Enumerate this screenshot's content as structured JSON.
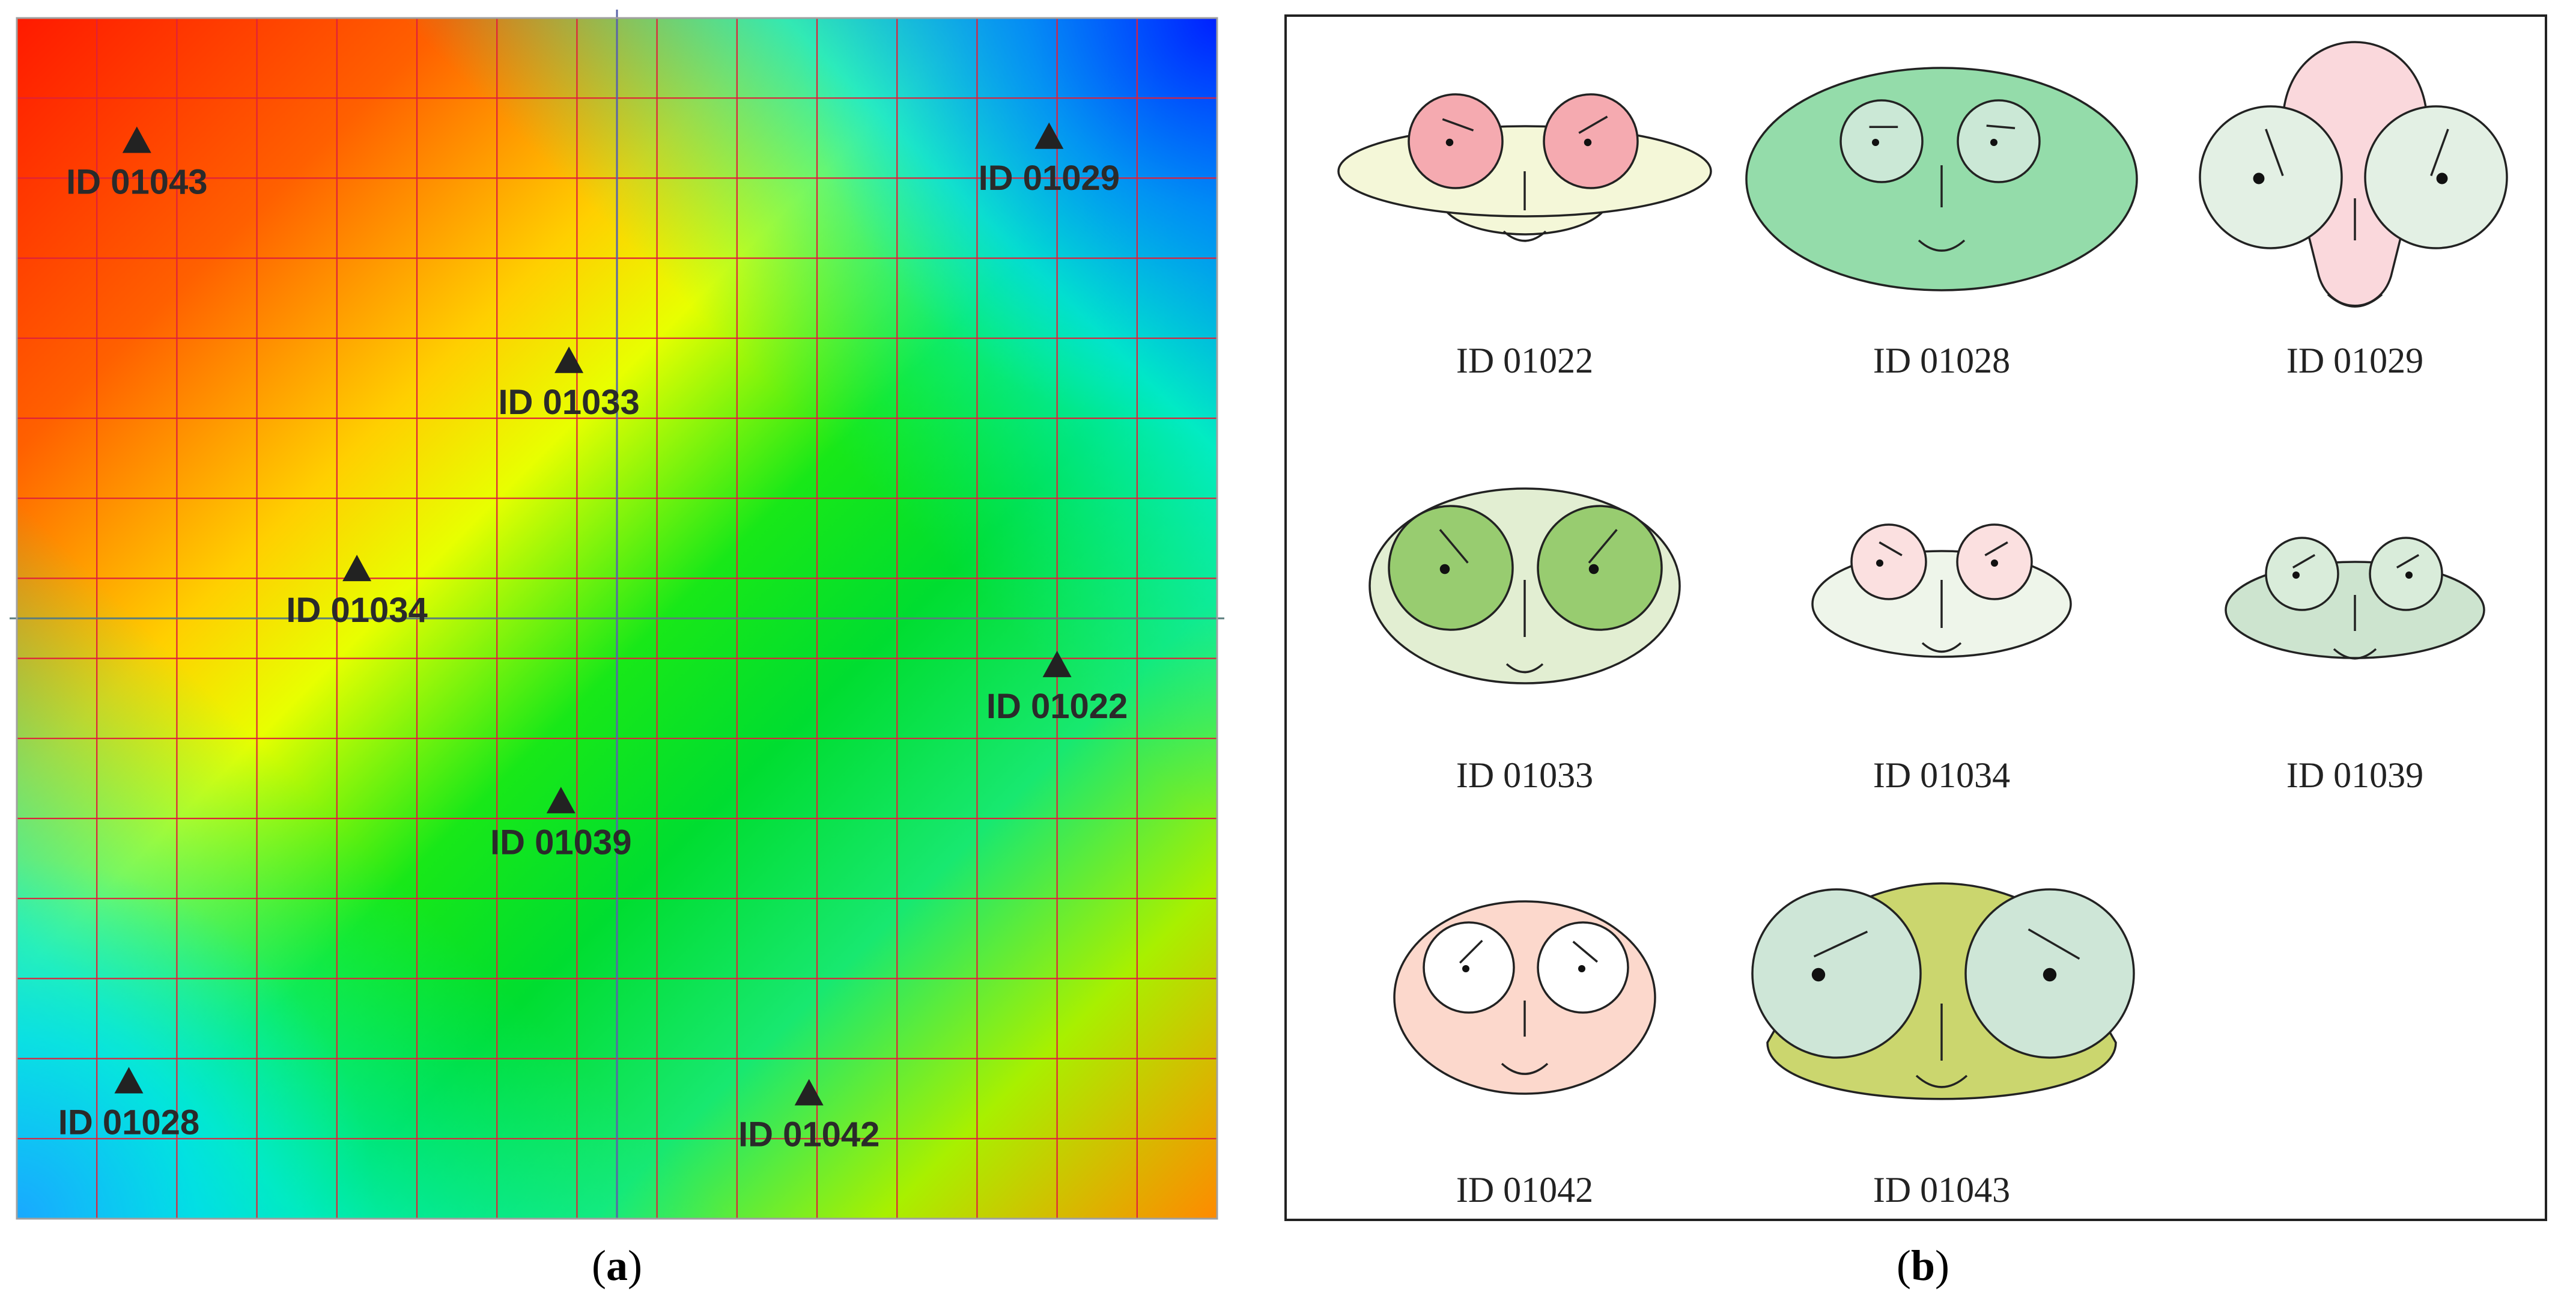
{
  "panel_a": {
    "caption_letter": "a",
    "points": [
      {
        "id": "ID 01043",
        "col": 1.5,
        "row": 1.55,
        "label_dx": 0,
        "label_dy": 1
      },
      {
        "id": "ID 01029",
        "col": 12.9,
        "row": 1.5,
        "label_dx": 0,
        "label_dy": 1
      },
      {
        "id": "ID 01033",
        "col": 6.9,
        "row": 4.3,
        "label_dx": 0,
        "label_dy": 1
      },
      {
        "id": "ID 01034",
        "col": 4.25,
        "row": 6.9,
        "label_dx": 0,
        "label_dy": 1
      },
      {
        "id": "ID 01022",
        "col": 13.0,
        "row": 8.1,
        "label_dx": 0,
        "label_dy": 1
      },
      {
        "id": "ID 01039",
        "col": 6.8,
        "row": 9.8,
        "label_dx": 0,
        "label_dy": 1
      },
      {
        "id": "ID 01028",
        "col": 1.4,
        "row": 13.3,
        "label_dx": 0,
        "label_dy": 1
      },
      {
        "id": "ID 01042",
        "col": 9.9,
        "row": 13.45,
        "label_dx": 0,
        "label_dy": 1
      }
    ],
    "grid_cells": 15,
    "colors": {
      "grid": "#e0203a",
      "axis": "#5060a0",
      "marker": "#222222"
    }
  },
  "panel_b": {
    "caption_letter": "b",
    "faces": [
      {
        "id": "ID 01022",
        "face": "#f4f7d8",
        "eyes": "#f5aab0"
      },
      {
        "id": "ID 01028",
        "face": "#94dcaa",
        "eyes": "#cbe8d6"
      },
      {
        "id": "ID 01029",
        "face": "#fad8dc",
        "eyes": "#e3f0e4"
      },
      {
        "id": "ID 01033",
        "face": "#e2eed2",
        "eyes": "#98cc70"
      },
      {
        "id": "ID 01034",
        "face": "#eef5ea",
        "eyes": "#fbe0e0"
      },
      {
        "id": "ID 01039",
        "face": "#cde4cf",
        "eyes": "#d9ecda"
      },
      {
        "id": "ID 01042",
        "face": "#fcd8cc",
        "eyes": "#ffffff"
      },
      {
        "id": "ID 01043",
        "face": "#cbd66e",
        "eyes": "#cee6d7"
      }
    ]
  }
}
